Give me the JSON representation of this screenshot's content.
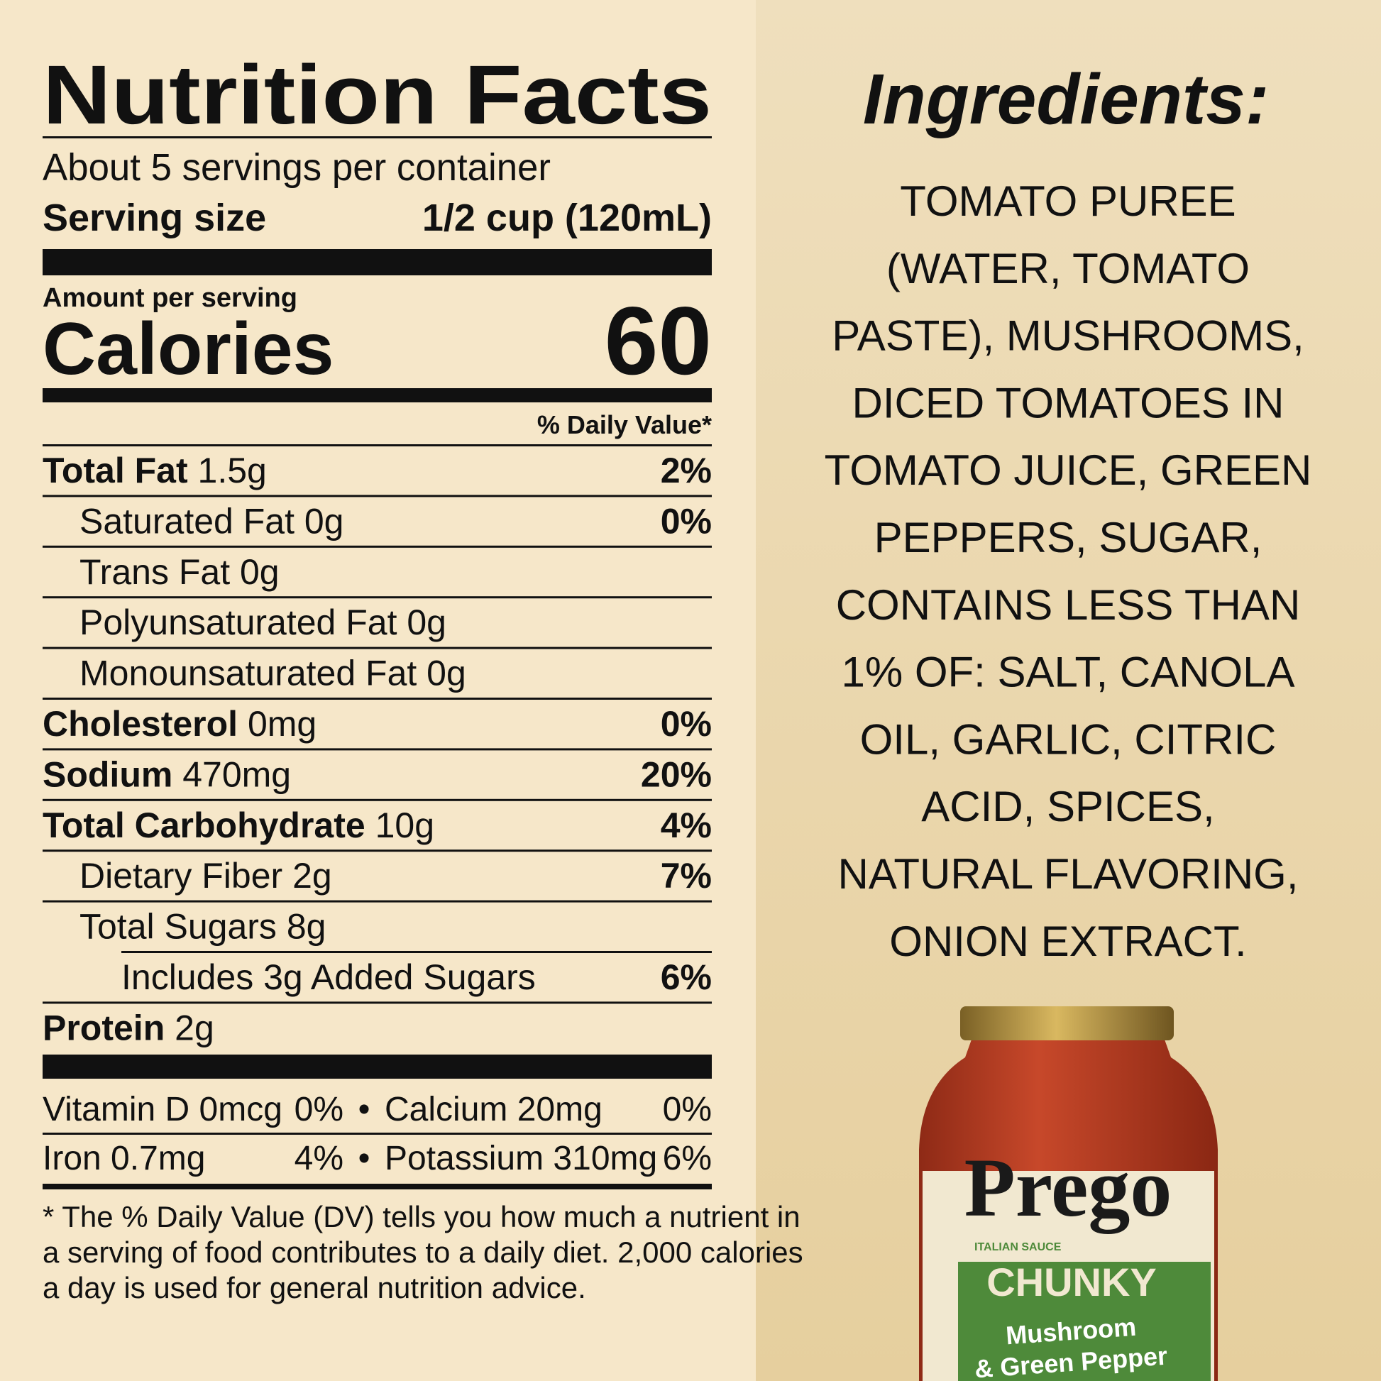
{
  "nutrition_facts": {
    "title": "Nutrition Facts",
    "servings_per_container": "About 5 servings per container",
    "serving_size": {
      "label": "Serving size",
      "value": "1/2 cup (120mL)"
    },
    "amount_per_serving": "Amount per serving",
    "calories": {
      "label": "Calories",
      "value": "60"
    },
    "daily_value_header": "% Daily Value*",
    "nutrients": [
      {
        "name": "Total Fat",
        "amount": "1.5g",
        "daily_value": "2%",
        "level": 0
      },
      {
        "name": "Saturated Fat 0g",
        "daily_value": "0%",
        "level": 1
      },
      {
        "name": "Trans Fat 0g",
        "level": 1
      },
      {
        "name": "Polyunsaturated Fat 0g",
        "level": 1
      },
      {
        "name": "Monounsaturated Fat 0g",
        "level": 1
      },
      {
        "name": "Cholesterol",
        "amount": "0mg",
        "daily_value": "0%",
        "level": 0
      },
      {
        "name": "Sodium",
        "amount": "470mg",
        "daily_value": "20%",
        "level": 0
      },
      {
        "name": "Total Carbohydrate",
        "amount": "10g",
        "daily_value": "4%",
        "level": 0
      },
      {
        "name": "Dietary Fiber 2g",
        "daily_value": "7%",
        "level": 1
      },
      {
        "name": "Total Sugars 8g",
        "level": 1
      },
      {
        "name": "Includes 3g Added Sugars",
        "daily_value": "6%",
        "level": 2
      },
      {
        "name": "Protein",
        "amount": "2g",
        "level": 0
      }
    ],
    "vitamins": [
      {
        "left": {
          "name": "Vitamin D 0mcg",
          "daily_value": "0%"
        },
        "right": {
          "name": "Calcium 20mg",
          "daily_value": "0%"
        }
      },
      {
        "left": {
          "name": "Iron 0.7mg",
          "daily_value": "4%"
        },
        "right": {
          "name": "Potassium 310mg",
          "daily_value": "6%"
        }
      }
    ],
    "separator": "•",
    "footnote": [
      "* The % Daily Value (DV) tells you how much a nutrient in",
      "a serving of food contributes to a daily diet. 2,000 calories",
      "a day is used for general nutrition advice."
    ]
  },
  "ingredients": {
    "title": "Ingredients:",
    "lines": [
      "TOMATO PUREE",
      "(WATER, TOMATO",
      "PASTE), MUSHROOMS,",
      "DICED TOMATOES IN",
      "TOMATO JUICE, GREEN",
      "PEPPERS, SUGAR,",
      "CONTAINS LESS THAN",
      "1% OF: SALT, CANOLA",
      "OIL, GARLIC, CITRIC",
      "ACID, SPICES,",
      "NATURAL FLAVORING,",
      "ONION EXTRACT."
    ]
  },
  "product": {
    "brand": "Prego",
    "subtitle": "ITALIAN SAUCE",
    "line": "CHUNKY",
    "variety": [
      "Mushroom",
      "& Green Pepper"
    ]
  }
}
